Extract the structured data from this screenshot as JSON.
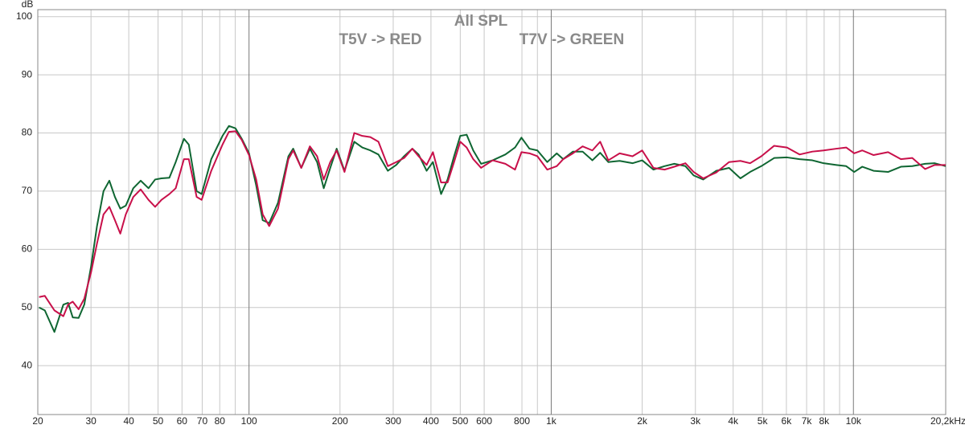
{
  "chart_data": {
    "type": "line",
    "title": "All SPL",
    "annotations": [
      "T5V -> RED",
      "T7V -> GREEN"
    ],
    "y_label": "dB",
    "log_x": true,
    "grid": true,
    "x": [
      20.2,
      21.1,
      22.7,
      24.3,
      25.2,
      26.1,
      27.3,
      28.5,
      30,
      31.4,
      33,
      34.5,
      36,
      37.5,
      39.1,
      41.4,
      43.8,
      46.5,
      48.9,
      51.3,
      54.5,
      57.2,
      60.9,
      63.2,
      67.1,
      69.7,
      75,
      81.7,
      85.8,
      90.2,
      94.6,
      100,
      105.6,
      111,
      116.6,
      124.7,
      135,
      140,
      148.9,
      159,
      168,
      176.7,
      185.7,
      195,
      207,
      223,
      237,
      252,
      268,
      288,
      307,
      326,
      347,
      364,
      387,
      406,
      432,
      454,
      477,
      500,
      525,
      552,
      586,
      640,
      705,
      759,
      797,
      847,
      900,
      970,
      1043,
      1096,
      1180,
      1270,
      1368,
      1452,
      1545,
      1684,
      1858,
      2000,
      2178,
      2372,
      2554,
      2780,
      2960,
      3184,
      3516,
      3876,
      4227,
      4551,
      4957,
      5466,
      6027,
      6632,
      7312,
      7964,
      8786,
      9462,
      10060,
      10700,
      11660,
      13020,
      14360,
      15660,
      17260,
      18580,
      20190
    ],
    "series": [
      {
        "color": "#0f6632",
        "values": [
          50,
          49.5,
          45.8,
          50.5,
          50.8,
          48.3,
          48.2,
          50.5,
          57,
          64,
          70,
          71.8,
          69,
          67,
          67.5,
          70.5,
          71.8,
          70.5,
          72,
          72.2,
          72.3,
          75,
          79,
          78,
          70,
          69.5,
          75.5,
          79.5,
          81.2,
          80.8,
          79,
          76.5,
          71,
          65,
          64.5,
          68,
          76,
          77.3,
          74,
          77.3,
          75,
          70.5,
          74,
          77.3,
          73.5,
          78.5,
          77.5,
          77,
          76.3,
          73.5,
          74.5,
          76,
          77.3,
          76.3,
          73.5,
          75,
          69.5,
          72,
          76,
          79.5,
          79.7,
          77,
          74.7,
          75.3,
          76.3,
          77.5,
          79.2,
          77.3,
          77,
          75,
          76.5,
          75.5,
          76.8,
          76.8,
          75.3,
          76.6,
          75,
          75.2,
          74.8,
          75.3,
          73.7,
          74.3,
          74.7,
          74.3,
          72.7,
          72,
          73.5,
          74,
          72.2,
          73.3,
          74.3,
          75.7,
          75.8,
          75.5,
          75.3,
          74.8,
          74.5,
          74.3,
          73.3,
          74.2,
          73.5,
          73.3,
          74.2,
          74.3,
          74.7,
          74.8,
          74.3
        ]
      },
      {
        "color": "#c8104a",
        "values": [
          51.8,
          52,
          49.5,
          48.5,
          50.5,
          51,
          49.7,
          51.5,
          56,
          61,
          66,
          67.3,
          65,
          62.7,
          66,
          69,
          70.3,
          68.5,
          67.3,
          68.5,
          69.5,
          70.5,
          75.5,
          75.5,
          69,
          68.5,
          73.5,
          78,
          80.2,
          80.3,
          78.8,
          76.2,
          72,
          66,
          64,
          67,
          75.5,
          77,
          74,
          77.7,
          76,
          72,
          75,
          77,
          73.3,
          80,
          79.5,
          79.3,
          78.5,
          74.3,
          75,
          75.7,
          77.3,
          76,
          74.5,
          76.7,
          71.5,
          71.5,
          75,
          78.5,
          77.5,
          75.5,
          74,
          75.3,
          74.7,
          73.7,
          76.7,
          76.5,
          76,
          73.7,
          74.3,
          75.5,
          76.5,
          77.7,
          77,
          78.5,
          75.3,
          76.5,
          76,
          77,
          74,
          73.7,
          74.2,
          74.8,
          73.3,
          72.2,
          73.2,
          75,
          75.2,
          74.8,
          76,
          77.8,
          77.5,
          76.3,
          76.8,
          77,
          77.3,
          77.5,
          76.5,
          77,
          76.2,
          76.7,
          75.5,
          75.7,
          73.8,
          74.5,
          74.5
        ]
      }
    ],
    "xlim": [
      20,
      20200
    ],
    "ylim": [
      31.6,
      101.2
    ],
    "xticks": [
      20,
      30,
      40,
      50,
      60,
      70,
      80,
      100,
      200,
      300,
      400,
      500,
      600,
      800,
      {
        "value": 1000,
        "label": "1k"
      },
      {
        "value": 2000,
        "label": "2k"
      },
      {
        "value": 3000,
        "label": "3k"
      },
      {
        "value": 4000,
        "label": "4k"
      },
      {
        "value": 5000,
        "label": "5k"
      },
      {
        "value": 6000,
        "label": "6k"
      },
      {
        "value": 7000,
        "label": "7k"
      },
      {
        "value": 8000,
        "label": "8k"
      },
      {
        "value": 10000,
        "label": "10k"
      },
      {
        "value": 20200,
        "label": "20,2kHz"
      }
    ],
    "x_minor_grid": [
      90,
      900,
      9000
    ],
    "yticks": [
      40,
      50,
      60,
      70,
      80,
      90,
      100
    ]
  }
}
